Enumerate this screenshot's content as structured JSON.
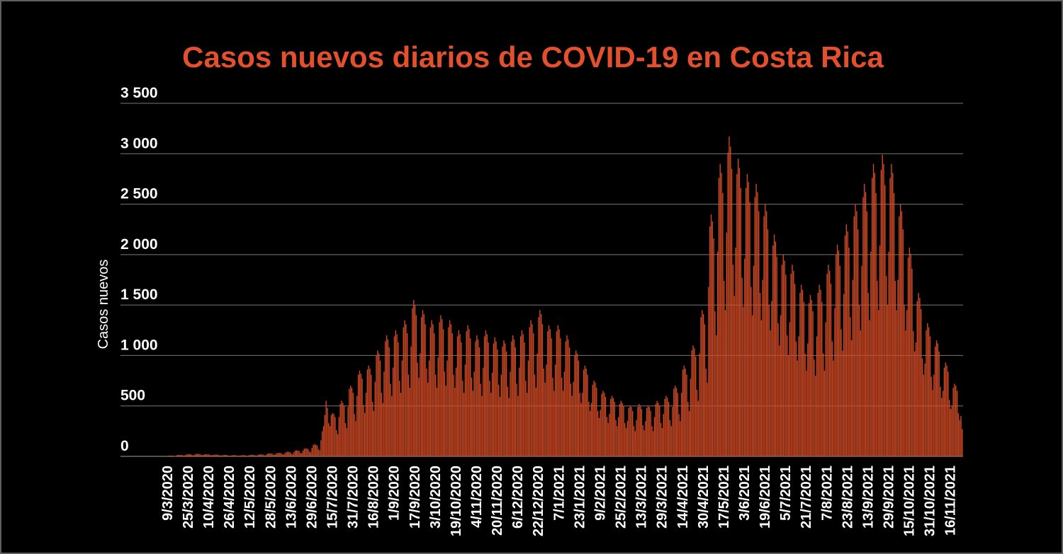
{
  "frame": {
    "background_color": "#000000",
    "border_color": "#5f5f5f"
  },
  "chart_data": {
    "type": "bar",
    "title": "Casos nuevos diarios de COVID-19 en Costa Rica",
    "title_color": "#e2502d",
    "xlabel": "",
    "ylabel": "Casos nuevos",
    "ylim": [
      0,
      3500
    ],
    "grid": "horizontal",
    "legend": "none",
    "bar_color": "#d14b26",
    "grid_color": "#787878",
    "axis_line_color": "#a0a0a0",
    "tick_label_color": "#ffffff",
    "y_ticks": [
      0,
      500,
      1000,
      1500,
      2000,
      2500,
      3000,
      3500
    ],
    "y_tick_labels": [
      "0",
      "500",
      "1 000",
      "1 500",
      "2 000",
      "2 500",
      "3 000",
      "3 500"
    ],
    "x_tick_every": 16,
    "x_tick_labels": [
      "9/3/2020",
      "25/3/2020",
      "10/4/2020",
      "26/4/2020",
      "12/5/2020",
      "28/5/2020",
      "13/6/2020",
      "29/6/2020",
      "15/7/2020",
      "31/7/2020",
      "16/8/2020",
      "1/9/2020",
      "17/9/2020",
      "3/10/2020",
      "19/10/2020",
      "4/11/2020",
      "20/11/2020",
      "6/12/2020",
      "22/12/2020",
      "7/1/2021",
      "23/1/2021",
      "9/2/2021",
      "25/2/2021",
      "13/3/2021",
      "29/3/2021",
      "14/4/2021",
      "30/4/2021",
      "17/5/2021",
      "3/6/2021",
      "19/6/2021",
      "5/7/2021",
      "21/7/2021",
      "7/8/2021",
      "23/8/2021",
      "13/9/2021",
      "29/9/2021",
      "15/10/2021",
      "31/10/2021",
      "16/11/2021"
    ],
    "values": [
      6,
      8,
      8,
      8,
      7,
      5,
      4,
      11,
      14,
      15,
      15,
      14,
      9,
      8,
      15,
      21,
      22,
      21,
      20,
      13,
      11,
      18,
      24,
      25,
      24,
      23,
      15,
      13,
      15,
      21,
      22,
      21,
      20,
      13,
      11,
      13,
      17,
      18,
      17,
      16,
      11,
      9,
      10,
      13,
      14,
      14,
      13,
      8,
      7,
      8,
      11,
      12,
      12,
      11,
      7,
      6,
      8,
      11,
      12,
      12,
      11,
      7,
      6,
      11,
      14,
      15,
      15,
      14,
      9,
      8,
      14,
      19,
      20,
      19,
      18,
      12,
      10,
      21,
      29,
      30,
      29,
      27,
      18,
      15,
      25,
      33,
      35,
      34,
      32,
      21,
      18,
      32,
      43,
      45,
      44,
      41,
      27,
      23,
      42,
      57,
      60,
      58,
      54,
      36,
      30,
      56,
      76,
      80,
      78,
      72,
      48,
      40,
      84,
      114,
      120,
      116,
      108,
      72,
      60,
      160,
      250,
      300,
      410,
      550,
      480,
      330,
      300,
      410,
      430,
      420,
      390,
      260,
      220,
      390,
      520,
      550,
      530,
      500,
      330,
      280,
      490,
      670,
      700,
      680,
      630,
      420,
      350,
      600,
      810,
      850,
      820,
      770,
      510,
      430,
      630,
      860,
      900,
      870,
      810,
      540,
      450,
      740,
      1000,
      1050,
      1020,
      950,
      630,
      530,
      840,
      1140,
      1200,
      1160,
      1080,
      720,
      600,
      880,
      1190,
      1250,
      1210,
      1130,
      750,
      630,
      950,
      1280,
      1350,
      1310,
      1220,
      810,
      680,
      1090,
      1470,
      1550,
      1500,
      1400,
      930,
      780,
      1020,
      1380,
      1450,
      1410,
      1310,
      870,
      730,
      950,
      1280,
      1350,
      1310,
      1220,
      810,
      680,
      980,
      1330,
      1400,
      1360,
      1260,
      840,
      700,
      950,
      1280,
      1350,
      1310,
      1220,
      810,
      680,
      880,
      1190,
      1250,
      1210,
      1130,
      750,
      630,
      910,
      1240,
      1300,
      1260,
      1170,
      780,
      650,
      840,
      1140,
      1200,
      1160,
      1080,
      720,
      600,
      880,
      1190,
      1250,
      1210,
      1130,
      750,
      630,
      830,
      1120,
      1180,
      1140,
      1060,
      710,
      590,
      810,
      1090,
      1150,
      1120,
      1040,
      690,
      580,
      840,
      1140,
      1200,
      1160,
      1080,
      720,
      600,
      880,
      1190,
      1250,
      1210,
      1130,
      750,
      630,
      950,
      1280,
      1350,
      1310,
      1220,
      810,
      680,
      1020,
      1380,
      1450,
      1410,
      1310,
      870,
      730,
      910,
      1240,
      1300,
      1260,
      1170,
      780,
      650,
      910,
      1240,
      1300,
      1260,
      1170,
      780,
      650,
      840,
      1140,
      1200,
      1160,
      1080,
      720,
      600,
      740,
      1000,
      1050,
      1020,
      950,
      630,
      530,
      630,
      860,
      900,
      870,
      810,
      540,
      450,
      530,
      710,
      750,
      730,
      680,
      450,
      380,
      460,
      620,
      650,
      630,
      590,
      390,
      330,
      420,
      570,
      600,
      580,
      540,
      360,
      300,
      390,
      520,
      550,
      530,
      500,
      330,
      280,
      350,
      480,
      500,
      490,
      450,
      300,
      250,
      360,
      490,
      520,
      500,
      470,
      310,
      260,
      350,
      480,
      500,
      490,
      450,
      300,
      250,
      390,
      520,
      550,
      530,
      500,
      330,
      280,
      420,
      570,
      600,
      580,
      540,
      360,
      300,
      490,
      670,
      700,
      680,
      630,
      420,
      350,
      630,
      860,
      900,
      870,
      810,
      540,
      450,
      770,
      1050,
      1100,
      1070,
      990,
      660,
      550,
      1020,
      1380,
      1450,
      1410,
      1310,
      870,
      730,
      1680,
      2280,
      2400,
      2330,
      2160,
      1440,
      1200,
      2030,
      2760,
      2900,
      2810,
      2610,
      1740,
      1450,
      2220,
      3010,
      3170,
      3070,
      2850,
      1900,
      1590,
      2070,
      2800,
      2950,
      2860,
      2660,
      1770,
      1480,
      1960,
      2660,
      2800,
      2720,
      2520,
      1680,
      1400,
      1890,
      2570,
      2700,
      2620,
      2430,
      1620,
      1350,
      1750,
      2380,
      2500,
      2430,
      2250,
      1500,
      1250,
      1540,
      2090,
      2200,
      2130,
      1980,
      1320,
      1100,
      1400,
      1900,
      2000,
      1940,
      1800,
      1200,
      1000,
      1330,
      1810,
      1900,
      1840,
      1710,
      1140,
      950,
      1190,
      1620,
      1700,
      1650,
      1530,
      1020,
      850,
      1120,
      1520,
      1600,
      1550,
      1440,
      960,
      800,
      1190,
      1620,
      1700,
      1650,
      1530,
      1020,
      850,
      1330,
      1810,
      1900,
      1840,
      1710,
      1140,
      950,
      1470,
      2000,
      2100,
      2040,
      1890,
      1260,
      1050,
      1610,
      2190,
      2300,
      2230,
      2070,
      1380,
      1150,
      1750,
      2380,
      2500,
      2430,
      2250,
      1500,
      1250,
      1890,
      2570,
      2700,
      2620,
      2430,
      1620,
      1350,
      2030,
      2760,
      2900,
      2810,
      2610,
      1740,
      1450,
      2090,
      2840,
      2990,
      2900,
      2690,
      1790,
      1500,
      2030,
      2760,
      2900,
      2810,
      2610,
      1740,
      1450,
      1750,
      2380,
      2500,
      2430,
      2250,
      1500,
      1250,
      1450,
      1970,
      2070,
      2010,
      1860,
      1240,
      1040,
      1130,
      1540,
      1620,
      1570,
      1460,
      970,
      810,
      920,
      1250,
      1320,
      1280,
      1190,
      790,
      660,
      810,
      1090,
      1150,
      1120,
      1040,
      690,
      580,
      650,
      880,
      930,
      900,
      840,
      560,
      470,
      500,
      680,
      720,
      700,
      650,
      430,
      360,
      400,
      270
    ]
  }
}
